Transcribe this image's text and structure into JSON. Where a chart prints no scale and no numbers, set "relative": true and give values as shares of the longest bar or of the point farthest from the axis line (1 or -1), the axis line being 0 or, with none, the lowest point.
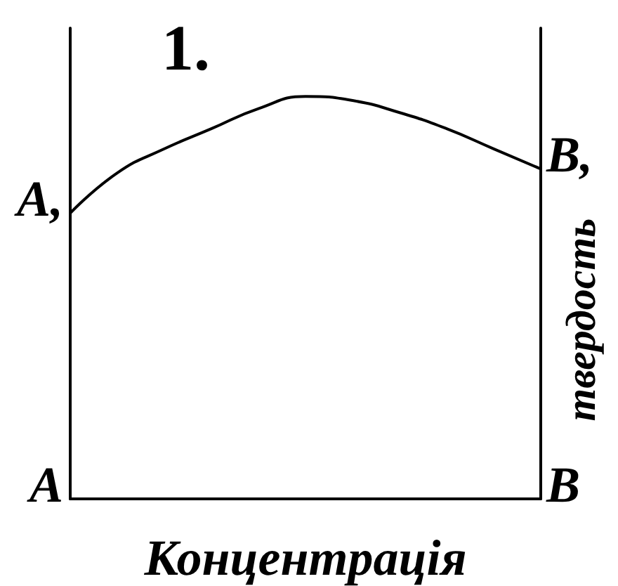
{
  "chart_data": {
    "type": "line",
    "title": "1.",
    "xlabel": "Концентрація",
    "ylabel": "твердость",
    "relative": true,
    "categories": [
      null,
      null,
      null,
      null,
      null,
      null,
      null,
      null,
      null,
      null,
      null
    ],
    "values": [
      0.71,
      0.81,
      0.87,
      0.92,
      0.97,
      1.0,
      0.99,
      0.96,
      0.92,
      0.87,
      0.82
    ],
    "color": "#000000",
    "marker": "none",
    "line_style": "solid",
    "annotations": [
      "A,",
      "B,",
      "A",
      "B"
    ]
  }
}
